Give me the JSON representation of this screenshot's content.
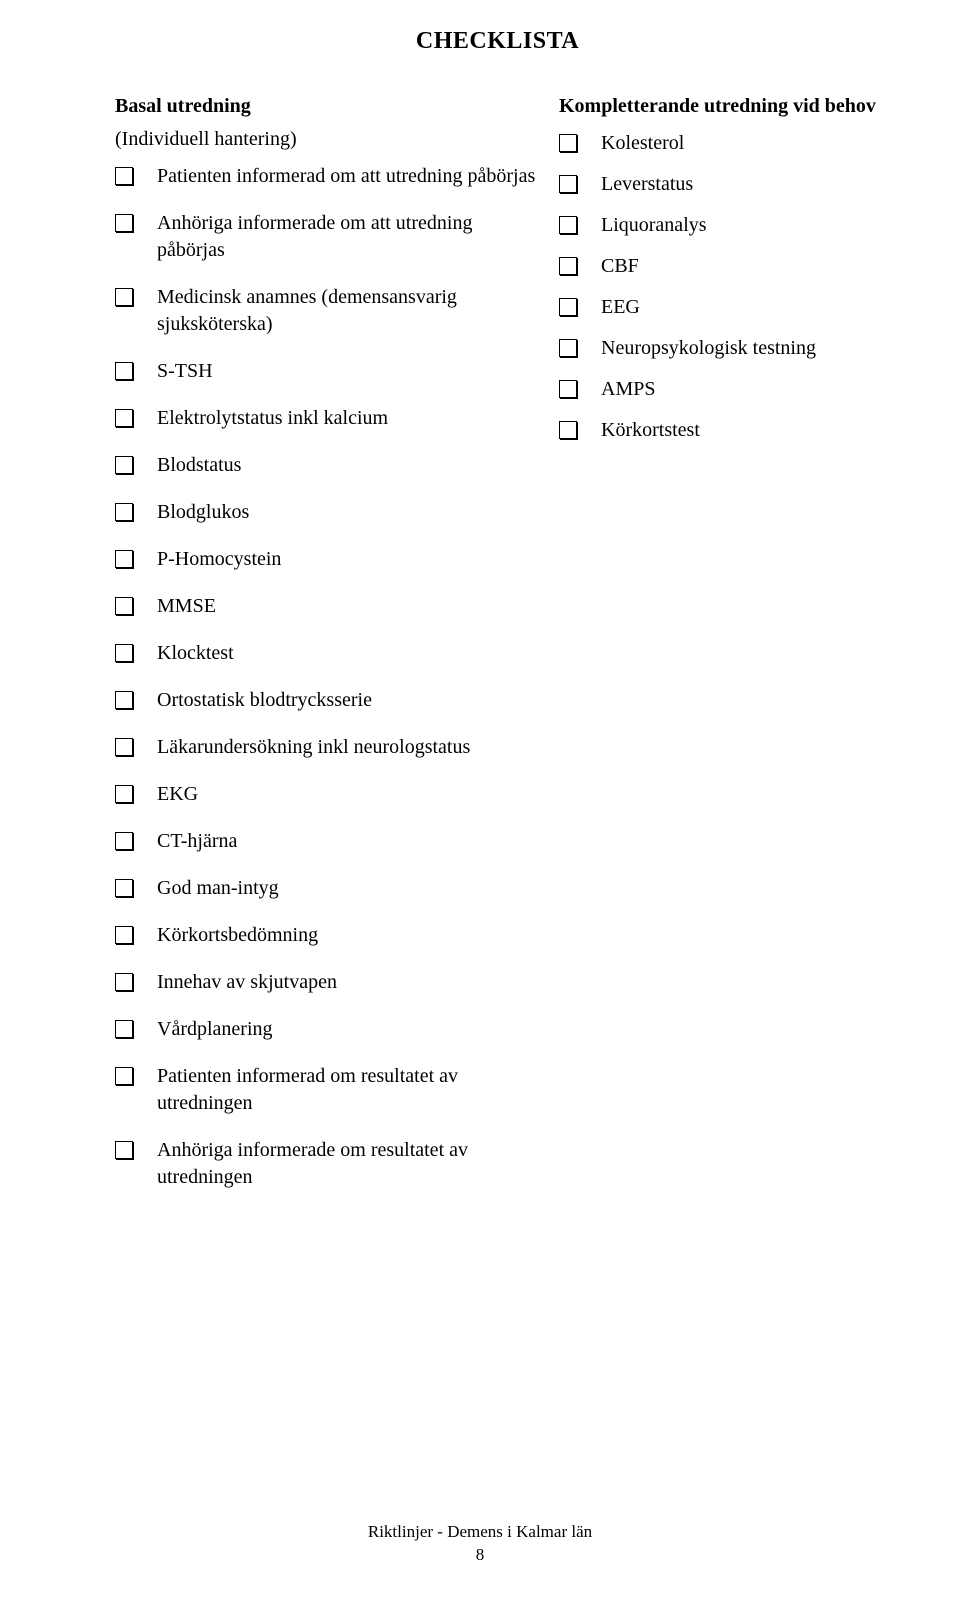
{
  "title": "CHECKLISTA",
  "left": {
    "heading": "Basal utredning",
    "subheading": "(Individuell hantering)",
    "items": [
      "Patienten informerad om att utredning påbörjas",
      "Anhöriga informerade om att utredning påbörjas",
      "Medicinsk anamnes (demensansvarig sjuksköterska)",
      "S-TSH",
      "Elektrolytstatus inkl kalcium",
      "Blodstatus",
      "Blodglukos",
      "P-Homocystein",
      "MMSE",
      "Klocktest",
      "Ortostatisk blodtrycksserie",
      "Läkarundersökning inkl neurologstatus",
      "EKG",
      "CT-hjärna",
      "God man-intyg",
      "Körkortsbedömning",
      "Innehav av skjutvapen",
      "Vårdplanering",
      "Patienten informerad om resultatet av utredningen",
      "Anhöriga informerade om resultatet av utredningen"
    ]
  },
  "right": {
    "heading": "Kompletterande utredning vid behov",
    "items": [
      "Kolesterol",
      "Leverstatus",
      "Liquoranalys",
      "CBF",
      "EEG",
      "Neuropsykologisk testning",
      "AMPS",
      "Körkortstest"
    ]
  },
  "footer": {
    "line1": "Riktlinjer - Demens i Kalmar län",
    "line2": "8"
  }
}
